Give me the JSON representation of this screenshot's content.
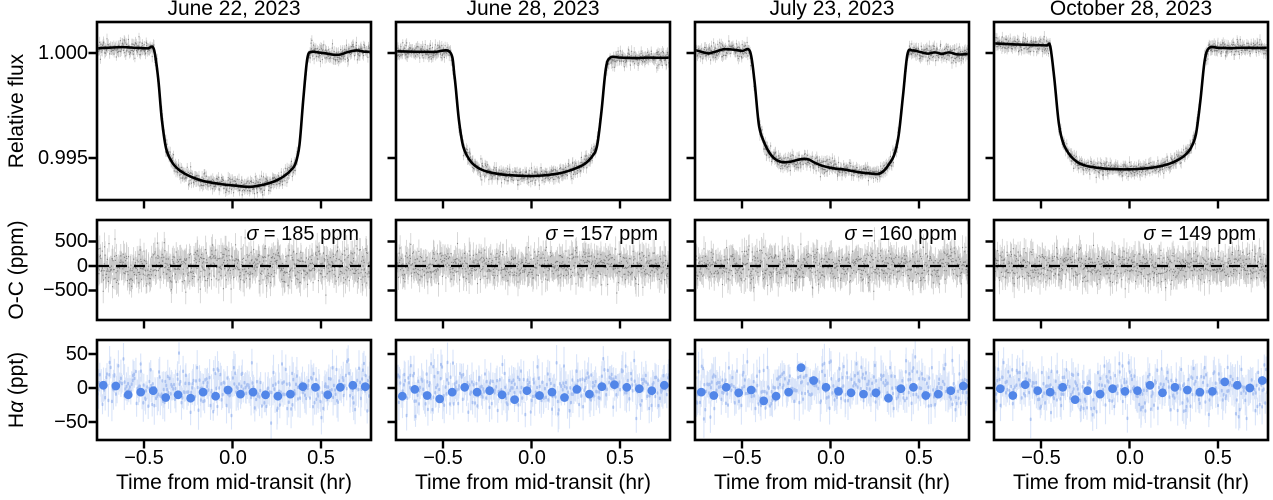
{
  "figure": {
    "x_axis_label": "Time from mid-transit (hr)",
    "x_tick_labels": [
      "−0.5",
      "0.0",
      "0.5"
    ],
    "rows": [
      {
        "name": "flux",
        "ylabel": "Relative flux",
        "ytick_labels": [
          "1.000",
          "0.995"
        ]
      },
      {
        "name": "oc",
        "ylabel": "O-C (ppm)",
        "ytick_labels": [
          "500",
          "0",
          "−500"
        ]
      },
      {
        "name": "halpha",
        "ylabel": "Hα (ppt)",
        "ytick_labels": [
          "50",
          "0",
          "−50"
        ]
      }
    ]
  },
  "chart_data": {
    "type": "line",
    "description": "Four transit epochs; per epoch: relative-flux light curve with transit model, O-C residuals (ppm) with dashed zero line, and Halpha (ppt) time series with binned points.",
    "x": {
      "label": "Time from mid-transit (hr)",
      "range": [
        -0.77,
        0.78
      ],
      "ticks": [
        -0.5,
        0.0,
        0.5
      ]
    },
    "y_rows": [
      {
        "label": "Relative flux",
        "ticks": [
          1.0,
          0.995
        ],
        "ylim": [
          0.993,
          1.00148
        ]
      },
      {
        "label": "O-C (ppm)",
        "ticks": [
          500,
          0,
          -500
        ],
        "ylim": [
          -1100,
          940
        ],
        "zero_line": "dashed"
      },
      {
        "label": "Hα (ppt)",
        "ticks": [
          50,
          0,
          -50
        ],
        "ylim": [
          -76,
          71
        ]
      }
    ],
    "panels": [
      {
        "title": "June 22, 2023",
        "sigma_label": "σ = 185 ppm",
        "sigma_ppm": 185,
        "flux_model": [
          [
            -0.77,
            1.00022
          ],
          [
            -0.7,
            1.00025
          ],
          [
            -0.62,
            1.00028
          ],
          [
            -0.54,
            1.00024
          ],
          [
            -0.48,
            1.00022
          ],
          [
            -0.445,
            1.0002
          ],
          [
            -0.42,
            0.9988
          ],
          [
            -0.4,
            0.9969
          ],
          [
            -0.375,
            0.99545
          ],
          [
            -0.34,
            0.99478
          ],
          [
            -0.3,
            0.99442
          ],
          [
            -0.26,
            0.99421
          ],
          [
            -0.22,
            0.99406
          ],
          [
            -0.18,
            0.99394
          ],
          [
            -0.14,
            0.99386
          ],
          [
            -0.1,
            0.9938
          ],
          [
            -0.06,
            0.99375
          ],
          [
            -0.02,
            0.99371
          ],
          [
            0.02,
            0.99368
          ],
          [
            0.06,
            0.99364
          ],
          [
            0.1,
            0.99363
          ],
          [
            0.14,
            0.99367
          ],
          [
            0.18,
            0.99374
          ],
          [
            0.22,
            0.99384
          ],
          [
            0.26,
            0.99398
          ],
          [
            0.3,
            0.99419
          ],
          [
            0.33,
            0.99442
          ],
          [
            0.355,
            0.99472
          ],
          [
            0.378,
            0.9956
          ],
          [
            0.4,
            0.9978
          ],
          [
            0.423,
            0.99975
          ],
          [
            0.447,
            1.00005
          ],
          [
            0.49,
            1.00002
          ],
          [
            0.53,
            0.99998
          ],
          [
            0.57,
            0.99992
          ],
          [
            0.61,
            0.99993
          ],
          [
            0.65,
            1.00004
          ],
          [
            0.7,
            1.00012
          ],
          [
            0.74,
            1.00007
          ],
          [
            0.78,
            1.00005
          ]
        ],
        "halpha_bins_ppt": [
          4,
          3,
          -10,
          -6,
          -4,
          -14,
          -10,
          -15,
          -6,
          -12,
          -3,
          -9,
          -6,
          -10,
          -12,
          -9,
          2,
          1,
          -10,
          1,
          4,
          2
        ]
      },
      {
        "title": "June 28, 2023",
        "sigma_label": "σ = 157 ppm",
        "sigma_ppm": 157,
        "flux_model": [
          [
            -0.77,
            1.00008
          ],
          [
            -0.65,
            1.00006
          ],
          [
            -0.55,
            1.00005
          ],
          [
            -0.46,
            1.00004
          ],
          [
            -0.435,
            0.9989
          ],
          [
            -0.41,
            0.9968
          ],
          [
            -0.385,
            0.99552
          ],
          [
            -0.345,
            0.99485
          ],
          [
            -0.3,
            0.99452
          ],
          [
            -0.25,
            0.99435
          ],
          [
            -0.2,
            0.99426
          ],
          [
            -0.15,
            0.9942
          ],
          [
            -0.1,
            0.99417
          ],
          [
            -0.05,
            0.99415
          ],
          [
            0.0,
            0.99414
          ],
          [
            0.05,
            0.99416
          ],
          [
            0.1,
            0.9942
          ],
          [
            0.15,
            0.99426
          ],
          [
            0.2,
            0.99436
          ],
          [
            0.25,
            0.99451
          ],
          [
            0.3,
            0.99472
          ],
          [
            0.34,
            0.99505
          ],
          [
            0.37,
            0.99557
          ],
          [
            0.395,
            0.9972
          ],
          [
            0.42,
            0.99925
          ],
          [
            0.445,
            0.99978
          ],
          [
            0.5,
            0.99978
          ],
          [
            0.58,
            0.99976
          ],
          [
            0.66,
            0.99978
          ],
          [
            0.72,
            0.99977
          ],
          [
            0.78,
            0.99978
          ]
        ],
        "halpha_bins_ppt": [
          -12,
          -2,
          -11,
          -16,
          -6,
          1,
          -6,
          -4,
          -10,
          -17,
          -4,
          -11,
          -6,
          -14,
          -2,
          -9,
          2,
          5,
          1,
          -1,
          -4,
          4
        ]
      },
      {
        "title": "July 23, 2023",
        "sigma_label": "σ = 160 ppm",
        "sigma_ppm": 160,
        "flux_model": [
          [
            -0.77,
            1.00015
          ],
          [
            -0.73,
            1.00006
          ],
          [
            -0.69,
            0.99998
          ],
          [
            -0.645,
            1.00008
          ],
          [
            -0.6,
            1.00018
          ],
          [
            -0.55,
            1.00016
          ],
          [
            -0.5,
            1.0001
          ],
          [
            -0.455,
            1.00008
          ],
          [
            -0.43,
            0.9987
          ],
          [
            -0.405,
            0.9966
          ],
          [
            -0.38,
            0.99585
          ],
          [
            -0.345,
            0.99525
          ],
          [
            -0.31,
            0.99493
          ],
          [
            -0.27,
            0.9948
          ],
          [
            -0.23,
            0.99482
          ],
          [
            -0.19,
            0.9949
          ],
          [
            -0.15,
            0.99496
          ],
          [
            -0.12,
            0.99492
          ],
          [
            -0.09,
            0.99478
          ],
          [
            -0.05,
            0.99464
          ],
          [
            -0.01,
            0.99455
          ],
          [
            0.03,
            0.99449
          ],
          [
            0.07,
            0.99446
          ],
          [
            0.11,
            0.9944
          ],
          [
            0.15,
            0.99434
          ],
          [
            0.19,
            0.99429
          ],
          [
            0.23,
            0.99426
          ],
          [
            0.27,
            0.99424
          ],
          [
            0.3,
            0.99438
          ],
          [
            0.33,
            0.9947
          ],
          [
            0.36,
            0.99515
          ],
          [
            0.385,
            0.99608
          ],
          [
            0.41,
            0.998
          ],
          [
            0.435,
            0.99995
          ],
          [
            0.465,
            1.00012
          ],
          [
            0.51,
            1.00004
          ],
          [
            0.55,
            0.99997
          ],
          [
            0.59,
            1.00003
          ],
          [
            0.63,
            0.99996
          ],
          [
            0.67,
            1.00003
          ],
          [
            0.72,
            0.99993
          ],
          [
            0.78,
            0.99996
          ]
        ],
        "halpha_bins_ppt": [
          -6,
          -11,
          1,
          -7,
          -3,
          -19,
          -12,
          -6,
          30,
          11,
          1,
          -5,
          -7,
          -9,
          -7,
          -15,
          -1,
          1,
          -11,
          -9,
          -4,
          3
        ]
      },
      {
        "title": "October 28, 2023",
        "sigma_label": "σ = 149 ppm",
        "sigma_ppm": 149,
        "flux_model": [
          [
            -0.77,
            1.00046
          ],
          [
            -0.7,
            1.00043
          ],
          [
            -0.62,
            1.0004
          ],
          [
            -0.54,
            1.00038
          ],
          [
            -0.47,
            1.00036
          ],
          [
            -0.448,
            1.00032
          ],
          [
            -0.425,
            0.9988
          ],
          [
            -0.4,
            0.9967
          ],
          [
            -0.375,
            0.99572
          ],
          [
            -0.335,
            0.99512
          ],
          [
            -0.29,
            0.99478
          ],
          [
            -0.25,
            0.99464
          ],
          [
            -0.21,
            0.99457
          ],
          [
            -0.17,
            0.99452
          ],
          [
            -0.13,
            0.99449
          ],
          [
            -0.09,
            0.99447
          ],
          [
            -0.05,
            0.99446
          ],
          [
            -0.01,
            0.99446
          ],
          [
            0.03,
            0.99447
          ],
          [
            0.07,
            0.99449
          ],
          [
            0.11,
            0.99452
          ],
          [
            0.15,
            0.99457
          ],
          [
            0.19,
            0.99464
          ],
          [
            0.23,
            0.99474
          ],
          [
            0.27,
            0.99489
          ],
          [
            0.31,
            0.99511
          ],
          [
            0.345,
            0.99545
          ],
          [
            0.375,
            0.99612
          ],
          [
            0.4,
            0.9977
          ],
          [
            0.425,
            0.99965
          ],
          [
            0.45,
            1.00024
          ],
          [
            0.5,
            1.00025
          ],
          [
            0.57,
            1.00023
          ],
          [
            0.64,
            1.00025
          ],
          [
            0.71,
            1.00024
          ],
          [
            0.78,
            1.00025
          ]
        ],
        "halpha_bins_ppt": [
          -1,
          -11,
          5,
          -4,
          -6,
          1,
          -17,
          -4,
          -9,
          -1,
          -5,
          -4,
          4,
          -7,
          1,
          -3,
          -6,
          -5,
          9,
          4,
          0,
          11
        ]
      }
    ],
    "noise": {
      "flux_errorbar_ppm": 220,
      "oc_errorbar_ppm": 230,
      "halpha_scatter_sd_ppt": 16,
      "halpha_errorbar_ppt": 21,
      "halpha_bin_errorbar_ppt": 6
    },
    "colors": {
      "model_line": "#000000",
      "data_gray": "#6e6e6e",
      "halpha_blue": "#5286e8",
      "halpha_light": "#adc8f2"
    }
  }
}
